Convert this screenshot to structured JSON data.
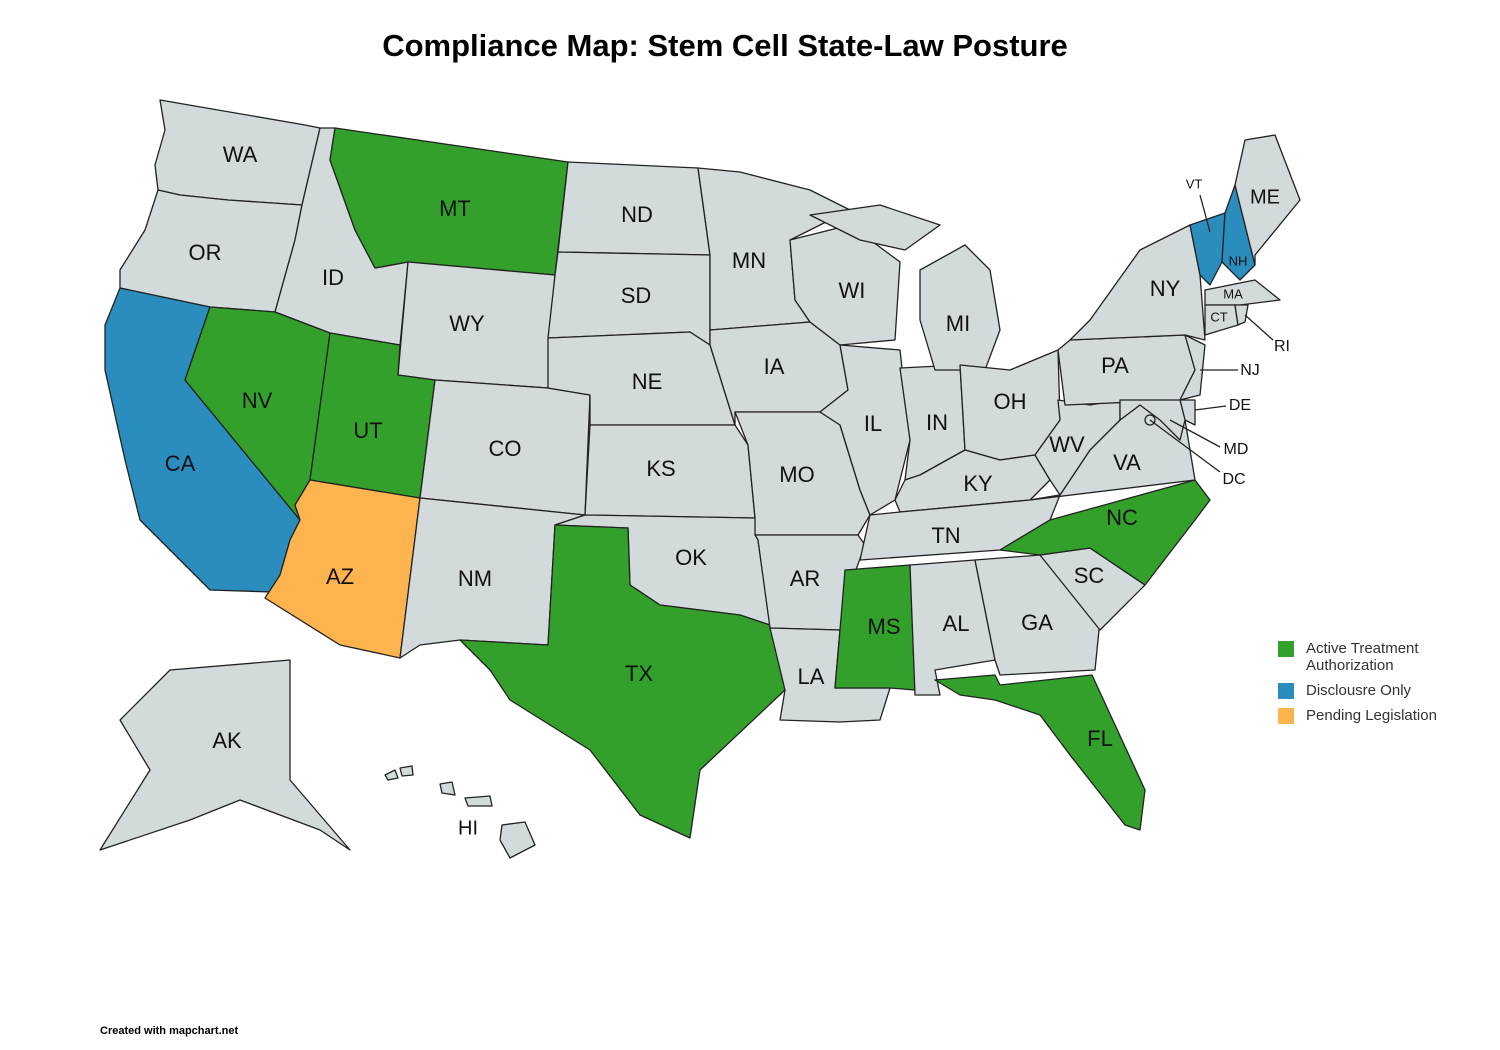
{
  "title": "Compliance Map: Stem Cell State-Law Posture",
  "default_color": "#d3dadc",
  "legend": [
    {
      "label": "Active Treatment Authorization",
      "color": "#33a02c"
    },
    {
      "label": "Disclousre Only",
      "color": "#2b8cbe"
    },
    {
      "label": "Pending Legislation",
      "color": "#fdb44e"
    }
  ],
  "states": [
    {
      "label": "WA"
    },
    {
      "label": "OR"
    },
    {
      "label": "CA",
      "color": "#2b8cbe"
    },
    {
      "label": "ID"
    },
    {
      "label": "NV",
      "color": "#33a02c"
    },
    {
      "label": "MT",
      "color": "#33a02c"
    },
    {
      "label": "WY"
    },
    {
      "label": "UT",
      "color": "#33a02c"
    },
    {
      "label": "AZ",
      "color": "#fdb44e"
    },
    {
      "label": "CO"
    },
    {
      "label": "NM"
    },
    {
      "label": "ND"
    },
    {
      "label": "SD"
    },
    {
      "label": "NE"
    },
    {
      "label": "KS"
    },
    {
      "label": "OK"
    },
    {
      "label": "TX",
      "color": "#33a02c"
    },
    {
      "label": "MN"
    },
    {
      "label": "IA"
    },
    {
      "label": "MO"
    },
    {
      "label": "AR"
    },
    {
      "label": "LA"
    },
    {
      "label": "WI"
    },
    {
      "label": "IL"
    },
    {
      "label": "IN"
    },
    {
      "label": "MI"
    },
    {
      "label": "OH"
    },
    {
      "label": "KY"
    },
    {
      "label": "TN"
    },
    {
      "label": "MS",
      "color": "#33a02c"
    },
    {
      "label": "AL"
    },
    {
      "label": "GA"
    },
    {
      "label": "FL",
      "color": "#33a02c"
    },
    {
      "label": "SC"
    },
    {
      "label": "NC",
      "color": "#33a02c"
    },
    {
      "label": "VA"
    },
    {
      "label": "WV"
    },
    {
      "label": "PA"
    },
    {
      "label": "NY"
    },
    {
      "label": "NJ"
    },
    {
      "label": "DE"
    },
    {
      "label": "MD"
    },
    {
      "label": "VT",
      "color": "#2b8cbe"
    },
    {
      "label": "NH",
      "color": "#2b8cbe"
    },
    {
      "label": "ME"
    },
    {
      "label": "MA"
    },
    {
      "label": "CT"
    },
    {
      "label": "RI"
    },
    {
      "label": "AK"
    },
    {
      "label": "HI"
    },
    {
      "label": "DC"
    }
  ],
  "footer": "Created with mapchart.net"
}
